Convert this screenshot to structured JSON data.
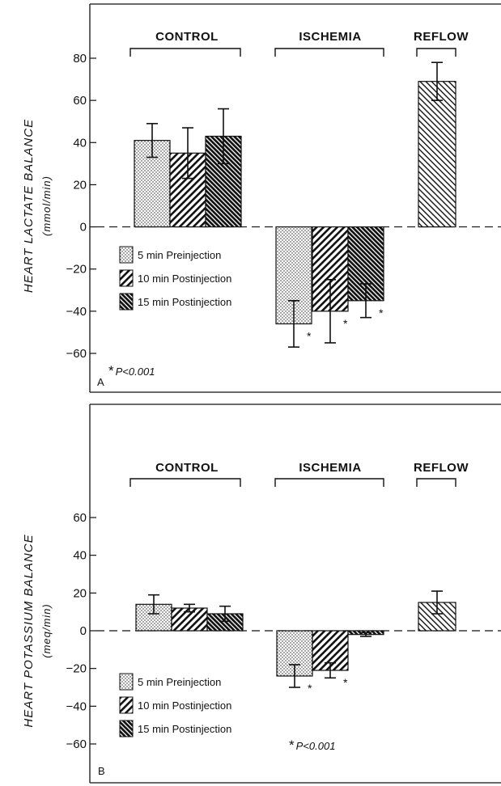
{
  "chart_data": [
    {
      "type": "bar",
      "panel": "A",
      "ylabel": "HEART LACTATE BALANCE",
      "yunit": "(mmol/min)",
      "ylim": [
        -60,
        80
      ],
      "yticks": [
        -60,
        -40,
        -20,
        0,
        20,
        40,
        60,
        80
      ],
      "groups": [
        "CONTROL",
        "ISCHEMIA",
        "REFLOW"
      ],
      "series": [
        {
          "name": "5 min Preinjection",
          "pattern": "dots",
          "values": [
            41,
            -46,
            null
          ],
          "errors": [
            8,
            11,
            null
          ],
          "significant": [
            false,
            true,
            false
          ]
        },
        {
          "name": "10 min Postinjection",
          "pattern": "hatch-back",
          "values": [
            35,
            -40,
            null
          ],
          "errors": [
            12,
            15,
            null
          ],
          "significant": [
            false,
            true,
            false
          ]
        },
        {
          "name": "15 min Postinjection",
          "pattern": "hatch-dense",
          "values": [
            43,
            -35,
            null
          ],
          "errors": [
            13,
            8,
            null
          ],
          "significant": [
            false,
            true,
            false
          ]
        },
        {
          "name": "Reflow",
          "pattern": "hatch-fwd",
          "values": [
            null,
            null,
            69
          ],
          "errors": [
            null,
            null,
            9
          ],
          "significant": [
            false,
            false,
            false
          ]
        }
      ],
      "significance_note": {
        "marker": "*",
        "label": "P<0.001"
      }
    },
    {
      "type": "bar",
      "panel": "B",
      "ylabel": "HEART POTASSIUM BALANCE",
      "yunit": "(meq/min)",
      "ylim": [
        -60,
        60
      ],
      "yticks": [
        -60,
        -40,
        -20,
        0,
        20,
        40,
        60
      ],
      "groups": [
        "CONTROL",
        "ISCHEMIA",
        "REFLOW"
      ],
      "series": [
        {
          "name": "5 min Preinjection",
          "pattern": "dots",
          "values": [
            14,
            -24,
            null
          ],
          "errors": [
            5,
            6,
            null
          ],
          "significant": [
            false,
            true,
            false
          ]
        },
        {
          "name": "10 min Postinjection",
          "pattern": "hatch-back",
          "values": [
            12,
            -21,
            null
          ],
          "errors": [
            2,
            4,
            null
          ],
          "significant": [
            false,
            true,
            false
          ]
        },
        {
          "name": "15 min Postinjection",
          "pattern": "hatch-dense",
          "values": [
            9,
            -2,
            null
          ],
          "errors": [
            4,
            1,
            null
          ],
          "significant": [
            false,
            false,
            false
          ]
        },
        {
          "name": "Reflow",
          "pattern": "hatch-fwd",
          "values": [
            null,
            null,
            15
          ],
          "errors": [
            null,
            null,
            6
          ],
          "significant": [
            false,
            false,
            false
          ]
        }
      ],
      "significance_note": {
        "marker": "*",
        "label": "P<0.001"
      }
    }
  ]
}
